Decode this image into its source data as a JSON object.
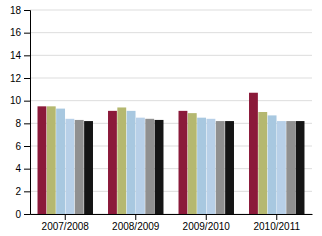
{
  "chart_data": {
    "type": "bar",
    "categories": [
      "2007/2008",
      "2008/2009",
      "2009/2010",
      "2010/2011"
    ],
    "series": [
      {
        "color": "#8B1A3A",
        "values": [
          9.5,
          9.1,
          9.1,
          10.7
        ]
      },
      {
        "color": "#B5B870",
        "values": [
          9.5,
          9.4,
          8.9,
          9.0
        ]
      },
      {
        "color": "#A8C8E0",
        "values": [
          9.3,
          9.1,
          8.5,
          8.7
        ]
      },
      {
        "color": "#B8D0E8",
        "values": [
          8.4,
          8.5,
          8.4,
          8.2
        ]
      },
      {
        "color": "#909090",
        "values": [
          8.3,
          8.4,
          8.2,
          8.2
        ]
      },
      {
        "color": "#151515",
        "values": [
          8.2,
          8.3,
          8.2,
          8.2
        ]
      }
    ],
    "ylim": [
      0,
      18
    ],
    "yticks": [
      0,
      2,
      4,
      6,
      8,
      10,
      12,
      14,
      16,
      18
    ],
    "grid": true
  }
}
